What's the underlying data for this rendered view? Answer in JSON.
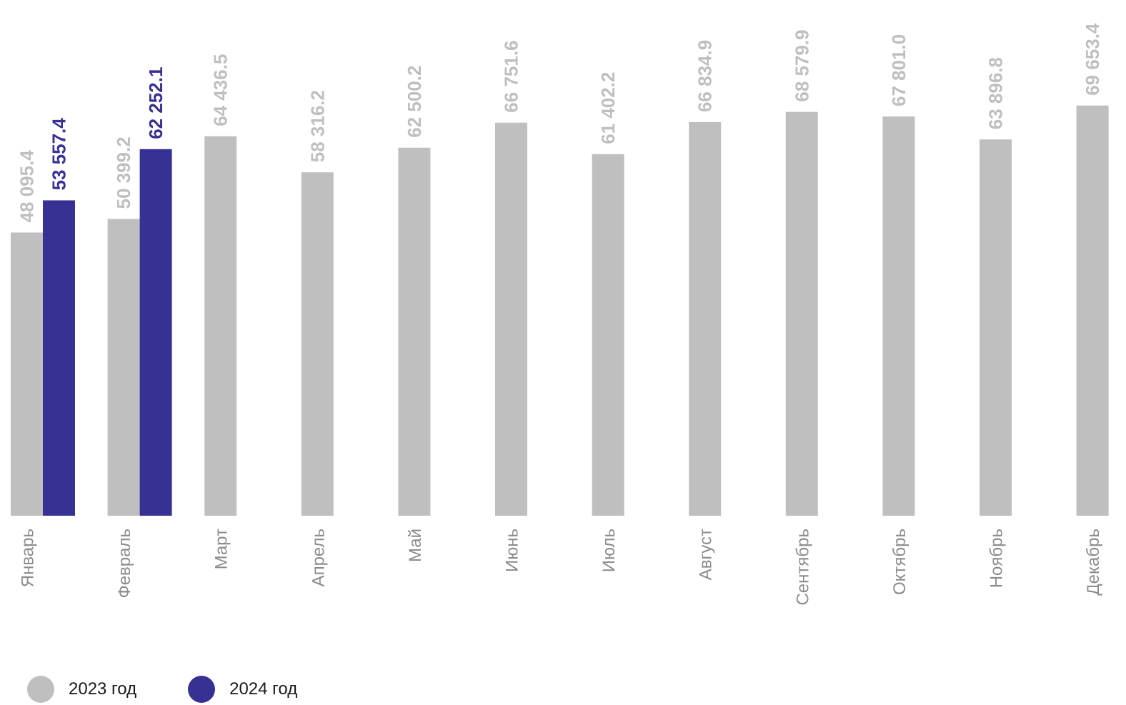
{
  "chart_data": {
    "type": "bar",
    "title": "",
    "xlabel": "",
    "ylabel": "",
    "ylim": [
      0,
      70000
    ],
    "grid": false,
    "legend_position": "bottom-left",
    "categories": [
      "Январь",
      "Февраль",
      "Март",
      "Апрель",
      "Май",
      "Июнь",
      "Июль",
      "Август",
      "Сентябрь",
      "Октябрь",
      "Ноябрь",
      "Декабрь"
    ],
    "series": [
      {
        "name": "2023 год",
        "color": "#bfbfbf",
        "label_color": "#bfbfbf",
        "values": [
          48095.4,
          50399.2,
          64436.5,
          58316.2,
          62500.2,
          66751.6,
          61402.2,
          66834.9,
          68579.9,
          67801.0,
          63896.8,
          69653.4
        ],
        "labels": [
          "48 095.4",
          "50 399.2",
          "64 436.5",
          "58 316.2",
          "62 500.2",
          "66 751.6",
          "61 402.2",
          "66 834.9",
          "68 579.9",
          "67 801.0",
          "63 896.8",
          "69 653.4"
        ]
      },
      {
        "name": "2024 год",
        "color": "#363192",
        "label_color": "#363192",
        "values": [
          53557.4,
          62252.1,
          null,
          null,
          null,
          null,
          null,
          null,
          null,
          null,
          null,
          null
        ],
        "labels": [
          "53 557.4",
          "62 252.1",
          null,
          null,
          null,
          null,
          null,
          null,
          null,
          null,
          null,
          null
        ]
      }
    ]
  }
}
